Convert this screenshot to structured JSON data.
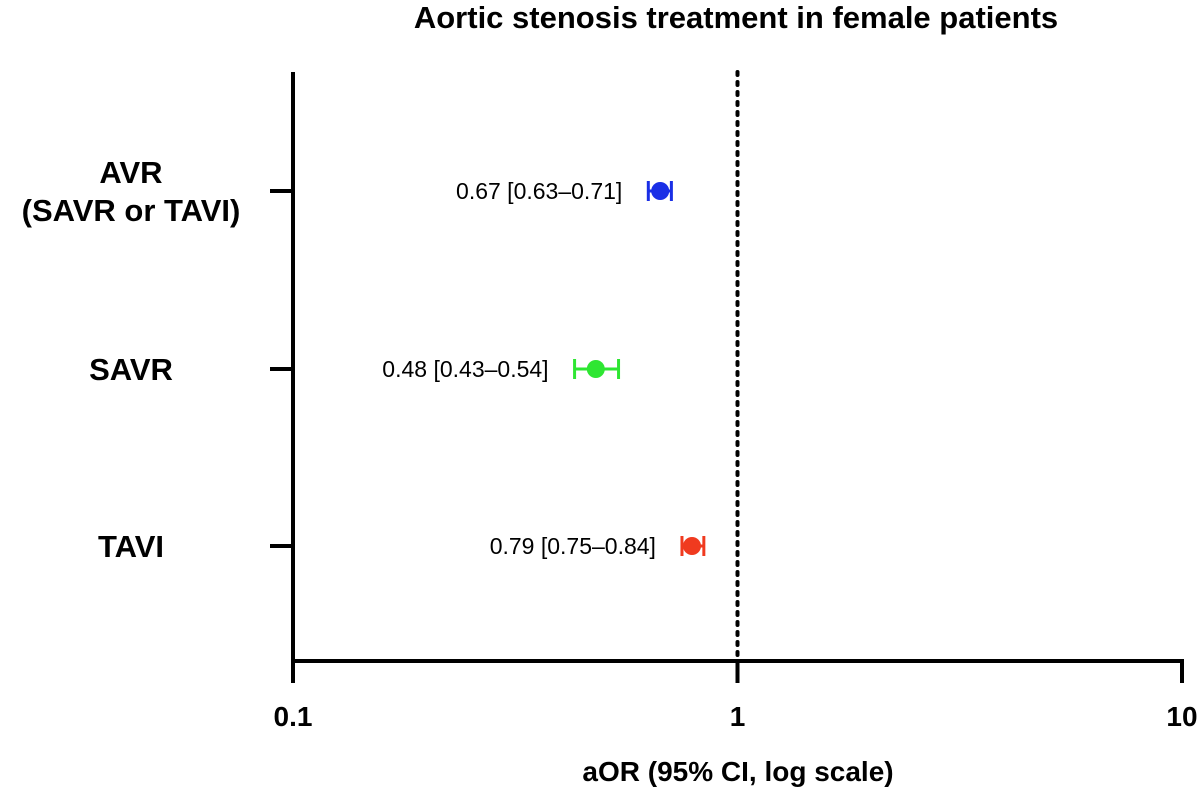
{
  "chart_data": {
    "type": "scatter",
    "subtype": "forest-plot",
    "title": "Aortic stenosis treatment in female patients",
    "xlabel": "aOR (95% CI, log scale)",
    "ylabel": "",
    "x_scale": "log",
    "xlim": [
      0.1,
      10
    ],
    "x_ticks": [
      "0.1",
      "1",
      "10"
    ],
    "reference_line": {
      "x": 1,
      "style": "dotted"
    },
    "grid": false,
    "legend": "none",
    "categories": [
      {
        "label_lines": [
          "AVR",
          "(SAVR or TAVI)"
        ],
        "value": 0.67,
        "ci_low": 0.63,
        "ci_high": 0.71,
        "label": "0.67 [0.63–0.71]",
        "color": "#1a2fe6"
      },
      {
        "label_lines": [
          "SAVR"
        ],
        "value": 0.48,
        "ci_low": 0.43,
        "ci_high": 0.54,
        "label": "0.48 [0.43–0.54]",
        "color": "#2ee632"
      },
      {
        "label_lines": [
          "TAVI"
        ],
        "value": 0.79,
        "ci_low": 0.75,
        "ci_high": 0.84,
        "label": "0.79 [0.75–0.84]",
        "color": "#f03a1f"
      }
    ]
  }
}
